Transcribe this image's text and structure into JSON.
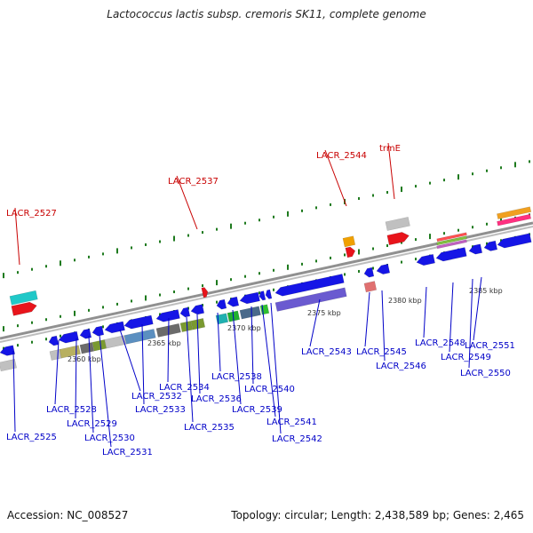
{
  "title": "Lactococcus lactis subsp. cremoris SK11, complete genome",
  "footer": {
    "accession_label": "Accession:",
    "accession": "NC_008527",
    "topology_label": "Topology:",
    "topology": "circular",
    "length_label": "Length:",
    "length": "2,438,589 bp",
    "genes_label": "Genes:",
    "genes": "2,465"
  },
  "colors": {
    "backbone": "#909090",
    "forward_gene": "#e8141b",
    "reverse_gene": "#1515e6",
    "label_forward": "#c80000",
    "label_reverse": "#0000c8",
    "tick": "#1e7a1e",
    "scale_text": "#333333"
  },
  "scale_labels": [
    "2360 kbp",
    "2365 kbp",
    "2370 kbp",
    "2375 kbp",
    "2380 kbp",
    "2385 kbp"
  ],
  "forward_genes": [
    "LACR_2527",
    "LACR_2537",
    "LACR_2544",
    "trmE"
  ],
  "reverse_genes": [
    "LACR_2525",
    "LACR_2528",
    "LACR_2529",
    "LACR_2530",
    "LACR_2531",
    "LACR_2532",
    "LACR_2533",
    "LACR_2534",
    "LACR_2535",
    "LACR_2536",
    "LACR_2538",
    "LACR_2539",
    "LACR_2540",
    "LACR_2541",
    "LACR_2542",
    "LACR_2543",
    "LACR_2545",
    "LACR_2546",
    "LACR_2548",
    "LACR_2549",
    "LACR_2550",
    "LACR_2551"
  ]
}
